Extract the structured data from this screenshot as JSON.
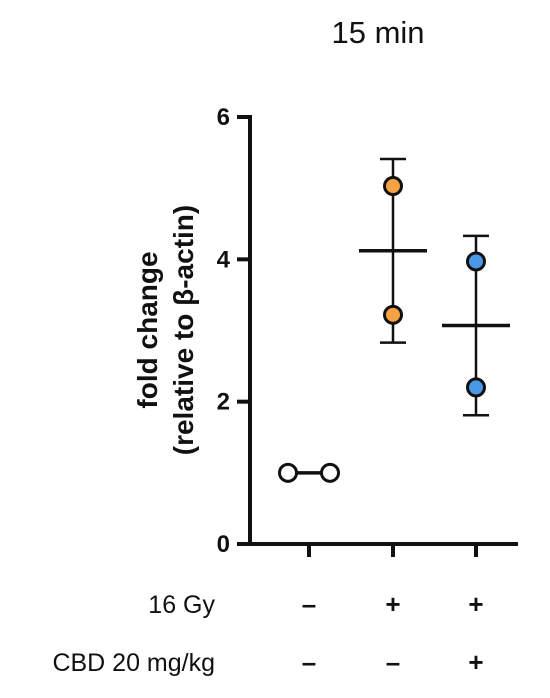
{
  "chart_data": {
    "type": "scatter",
    "title": "15 min",
    "ylabel_line1": "fold change",
    "ylabel_line2": "(relative to β-actin)",
    "xlabel": "",
    "ylim": [
      0,
      6
    ],
    "yticks": [
      0,
      2,
      4,
      6
    ],
    "grid": false,
    "groups": [
      {
        "points": [
          1.0,
          1.0
        ],
        "mean": 1.0,
        "sd": null,
        "color": "#ffffff"
      },
      {
        "points": [
          5.03,
          3.22
        ],
        "mean": 4.12,
        "sd": 1.29,
        "color": "#F5A243"
      },
      {
        "points": [
          3.97,
          2.2
        ],
        "mean": 3.07,
        "sd": 1.26,
        "color": "#4A98E6"
      }
    ],
    "conditions": [
      {
        "label": "16 Gy",
        "signs": [
          "–",
          "+",
          "+"
        ]
      },
      {
        "label": "CBD 20 mg/kg",
        "signs": [
          "–",
          "–",
          "+"
        ]
      }
    ]
  }
}
